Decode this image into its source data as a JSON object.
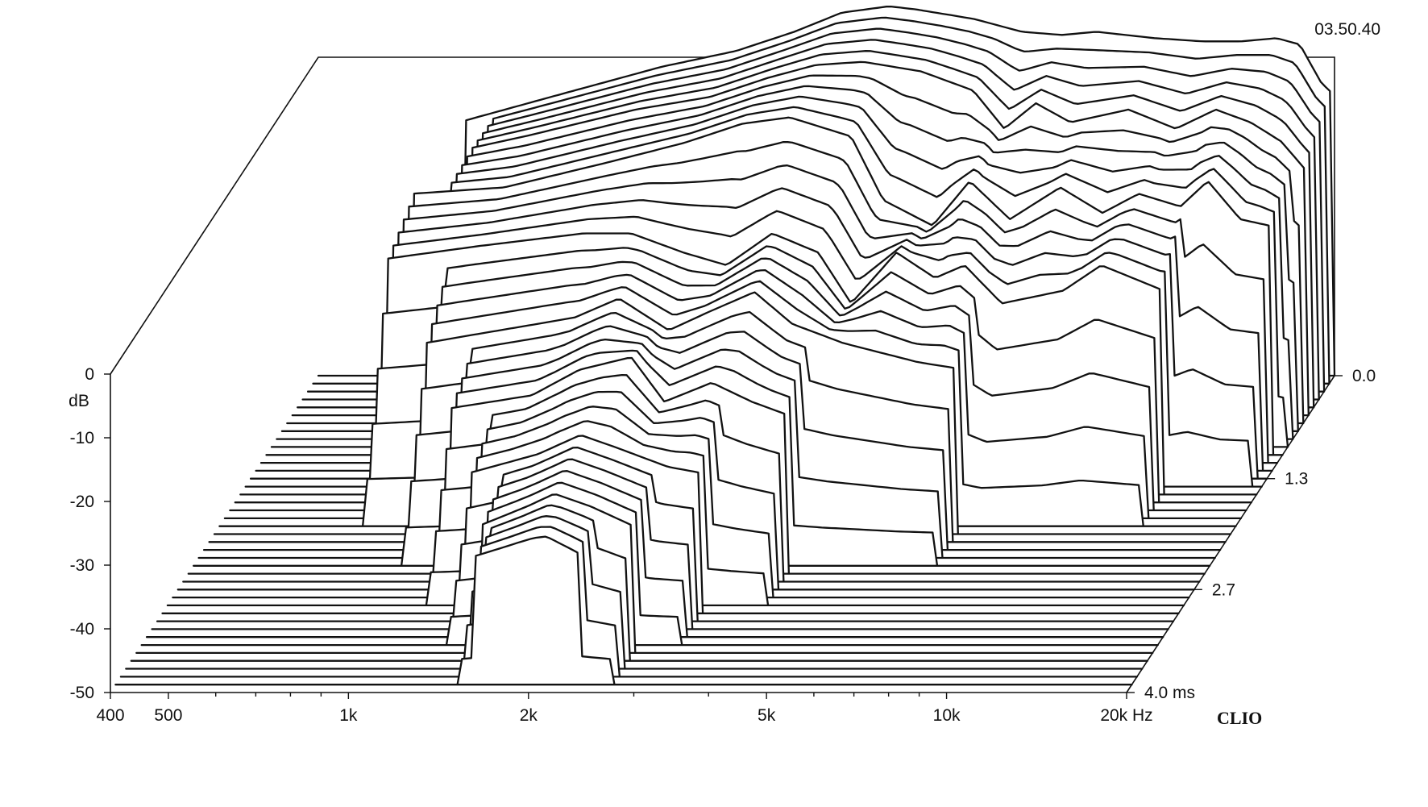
{
  "header": {
    "timestamp": "03.50.40"
  },
  "brand": {
    "logo_text": "CLIO"
  },
  "chart_data": {
    "type": "waterfall",
    "title": "",
    "x_axis": {
      "unit_label": "Hz",
      "scale": "log",
      "range": [
        400,
        20000
      ],
      "tick_labels": [
        {
          "value": 400,
          "label": "400"
        },
        {
          "value": 500,
          "label": "500"
        },
        {
          "value": 1000,
          "label": "1k"
        },
        {
          "value": 2000,
          "label": "2k"
        },
        {
          "value": 5000,
          "label": "5k"
        },
        {
          "value": 10000,
          "label": "10k"
        },
        {
          "value": 20000,
          "label": "20k Hz"
        }
      ],
      "minor_ticks": [
        600,
        700,
        800,
        900,
        3000,
        4000,
        6000,
        7000,
        8000,
        9000
      ]
    },
    "y_axis": {
      "unit_label": "dB",
      "range": [
        -50,
        0
      ],
      "tick_labels": [
        {
          "value": 0,
          "label": "0"
        },
        {
          "value": -10,
          "label": "-10"
        },
        {
          "value": -20,
          "label": "-20"
        },
        {
          "value": -30,
          "label": "-30"
        },
        {
          "value": -40,
          "label": "-40"
        },
        {
          "value": -50,
          "label": "-50"
        }
      ]
    },
    "z_axis": {
      "unit_label": "ms",
      "range": [
        0,
        4.0
      ],
      "tick_labels": [
        {
          "value": 0.0,
          "label": "0.0"
        },
        {
          "value": 1.3,
          "label": "1.3"
        },
        {
          "value": 2.7,
          "label": "2.7"
        },
        {
          "value": 4.0,
          "label": "4.0  ms"
        }
      ]
    },
    "slice_count": 40,
    "slice_step_ms": 0.1,
    "slices": [
      {
        "t_ms": 0.0,
        "f": [
          700,
          1000,
          1500,
          2000,
          2500,
          3000,
          3600,
          4000,
          5000,
          6000,
          7000,
          8000,
          10000,
          12000,
          14000,
          16000,
          17500,
          19000,
          20000
        ],
        "db": [
          -10,
          -6,
          -1.5,
          1,
          4,
          7,
          8,
          7.5,
          6,
          4,
          3.5,
          4,
          3,
          2.5,
          2.5,
          3,
          2,
          -4,
          -6
        ]
      },
      {
        "t_ms": 0.5,
        "f": [
          800,
          1000,
          1500,
          2000,
          2500,
          3000,
          3600,
          4500,
          5500,
          6200,
          7000,
          8000,
          10000,
          12000,
          14000,
          16000,
          18000,
          20000
        ],
        "db": [
          -8,
          -6,
          -2,
          0,
          3,
          5,
          5.5,
          4,
          1,
          -5,
          -1,
          -4,
          -2,
          -5,
          -2,
          -4,
          -7,
          -12
        ]
      },
      {
        "t_ms": 1.0,
        "f": [
          700,
          1000,
          1500,
          2000,
          2500,
          3000,
          3800,
          4300,
          5200,
          6000,
          7000,
          8500,
          10000,
          11500,
          13500,
          15000,
          17000,
          19000
        ],
        "db": [
          -9,
          -8,
          -4,
          -1,
          2,
          3,
          0,
          -10,
          -14,
          -7,
          -13,
          -8,
          -12,
          -9,
          -11,
          -7,
          -13,
          -14
        ]
      },
      {
        "t_ms": 1.5,
        "f": [
          700,
          1000,
          1500,
          1800,
          2200,
          2600,
          3100,
          3700,
          4200,
          5000,
          5800,
          6500,
          7500,
          9500,
          11000,
          14000
        ],
        "db": [
          -13,
          -11,
          -9,
          -9,
          -12,
          -14,
          -9,
          -12,
          -20,
          -12,
          -16,
          -14,
          -20,
          -18,
          -14,
          -18
        ]
      },
      {
        "t_ms": 2.0,
        "f": [
          900,
          1200,
          1600,
          1900,
          2300,
          2700,
          3200,
          3700,
          4500,
          6000,
          7000
        ],
        "db": [
          -20,
          -18,
          -16,
          -13,
          -18,
          -15,
          -12,
          -17,
          -20,
          -23,
          -24
        ]
      },
      {
        "t_ms": 2.5,
        "f": [
          1100,
          1500,
          1800,
          2200,
          2500,
          3000,
          3500,
          4000
        ],
        "db": [
          -24,
          -22,
          -18,
          -16,
          -23,
          -20,
          -23,
          -25
        ]
      },
      {
        "t_ms": 3.0,
        "f": [
          1300,
          1700,
          2000,
          2300,
          2800,
          3200
        ],
        "db": [
          -28,
          -25,
          -22,
          -24,
          -27,
          -28
        ]
      },
      {
        "t_ms": 3.5,
        "f": [
          1500,
          1800,
          2000,
          2300,
          2700
        ],
        "db": [
          -30,
          -27,
          -25,
          -27,
          -30
        ]
      },
      {
        "t_ms": 4.0,
        "f": [
          1600,
          1900,
          2100,
          2400
        ],
        "db": [
          -30,
          -28,
          -27,
          -30
        ]
      }
    ],
    "grid": false,
    "legend": "none"
  }
}
